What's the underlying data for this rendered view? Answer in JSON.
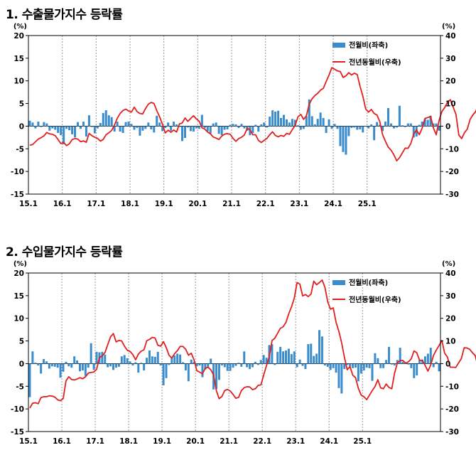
{
  "charts": [
    {
      "title": "1. 수출물가지수 등락률",
      "unit_left": "(%)",
      "unit_right": "(%)",
      "legend": {
        "bar": "전월비(좌축)",
        "line": "전년동월비(우축)"
      }
    },
    {
      "title": "2. 수입물가지수 등락률",
      "unit_left": "(%)",
      "unit_right": "(%)",
      "legend": {
        "bar": "전월비(좌축)",
        "line": "전년동월비(우축)"
      }
    }
  ],
  "colors": {
    "bar": "#3b8ccd",
    "line": "#e0201e",
    "grid": "#999999",
    "axis": "#000000"
  },
  "chart_data": [
    {
      "type": "bar+line",
      "title": "1. 수출물가지수 등락률",
      "x_start": "2015-01",
      "xticks": [
        "15.1",
        "16.1",
        "17.1",
        "18.1",
        "19.1",
        "20.1",
        "21.1",
        "22.1",
        "23.1",
        "24.1",
        "25.1"
      ],
      "left_axis": {
        "ylim": [
          -15,
          20
        ],
        "ticks": [
          -15,
          -10,
          -5,
          0,
          5,
          10,
          15,
          20
        ]
      },
      "right_axis": {
        "ylim": [
          -30,
          40
        ],
        "ticks": [
          -30,
          -20,
          -10,
          0,
          10,
          20,
          30,
          40
        ]
      },
      "series": [
        {
          "name": "전월비(좌축)",
          "axis": "left",
          "kind": "bar",
          "values": [
            1.2,
            0.8,
            -0.5,
            1.0,
            -0.2,
            0.9,
            0.6,
            -1.0,
            -0.5,
            -0.8,
            -1.5,
            -2.0,
            -4.0,
            -0.6,
            -0.9,
            -1.8,
            -2.5,
            0.9,
            -0.6,
            1.0,
            -2.3,
            2.4,
            -0.2,
            -1.6,
            -0.5,
            0.7,
            2.9,
            3.5,
            2.4,
            2.0,
            -1.2,
            1.0,
            -1.2,
            -1.5,
            0.9,
            1.0,
            0.5,
            -0.8,
            -0.4,
            -2.1,
            -1.0,
            -0.6,
            0.8,
            -0.7,
            -1.4,
            2.3,
            0.8,
            -1.1,
            -0.4,
            0.8,
            -1.0,
            1.0,
            0.4,
            -0.2,
            -3.3,
            -2.6,
            -0.3,
            -1.1,
            -1.2,
            -0.5,
            -0.6,
            2.5,
            -0.4,
            -1.1,
            -1.6,
            0.6,
            0.8,
            -1.7,
            -2.0,
            -0.8,
            -0.7,
            0.3,
            0.5,
            0.4,
            -0.4,
            0.5,
            -0.5,
            -1.0,
            -2.0,
            -1.5,
            0.3,
            -1.2,
            0.4,
            0.8,
            -0.3,
            2.1,
            3.5,
            3.2,
            3.4,
            1.8,
            2.5,
            1.5,
            0.8,
            1.6,
            1.4,
            0.2,
            -0.8,
            -0.6,
            2.2,
            5.9,
            2.2,
            0.4,
            1.6,
            3.0,
            1.8,
            -1.5,
            1.5,
            -0.6,
            0.5,
            -0.6,
            -4.4,
            -5.7,
            -6.3,
            -2.2,
            -0.4,
            -0.3,
            -0.8,
            -0.7,
            -1.4,
            -0.1,
            -0.5,
            0.4,
            -3.1,
            0.9,
            0.3,
            -1.1,
            1.0,
            4.0,
            0.6,
            -0.5,
            -0.3,
            4.5,
            0.2,
            -0.2,
            0.6,
            0.6,
            -2.5,
            -2.3,
            0.3,
            1.0,
            1.6,
            1.4,
            2.3,
            0.6,
            0.6,
            -1.0
          ]
        },
        {
          "name": "전년동월비(우축)",
          "axis": "right",
          "kind": "line",
          "values": [
            -8.4,
            -8.1,
            -6.9,
            -5.7,
            -5.1,
            -4.3,
            -2.8,
            -3.4,
            -3.6,
            -4.2,
            -5.9,
            -7.7,
            -7.2,
            -8.6,
            -7.8,
            -5.9,
            -5.5,
            -5.7,
            -6.9,
            -6.5,
            -7.1,
            -3.2,
            -4.2,
            -4.9,
            -5.4,
            -6.6,
            -5.9,
            -3.8,
            -2.9,
            -1.9,
            0.5,
            3.5,
            5.6,
            6.9,
            7.5,
            6.7,
            6.2,
            8.4,
            6.4,
            5.6,
            5.4,
            7.8,
            9.7,
            10.5,
            10.0,
            6.8,
            4.1,
            0.8,
            -3.0,
            -1.8,
            -2.7,
            -1.7,
            -2.6,
            1.0,
            1.4,
            3.6,
            2.1,
            3.4,
            4.6,
            3.2,
            2.2,
            -0.7,
            -1.3,
            -2.6,
            -3.4,
            -4.8,
            -5.3,
            -5.9,
            -4.4,
            -3.5,
            -3.3,
            -3.6,
            -5.4,
            -6.7,
            -5.5,
            -4.9,
            -3.9,
            -1.0,
            -1.6,
            -3.8,
            -3.8,
            -6.3,
            -7.2,
            -6.3,
            -5.4,
            -3.8,
            -2.5,
            -4.1,
            -4.7,
            -4.1,
            -4.5,
            -3.2,
            -3.6,
            -1.5,
            0.3,
            4.1,
            5.2,
            3.0,
            4.6,
            9.7,
            12.1,
            13.5,
            14.5,
            15.9,
            16.7,
            19.7,
            22.5,
            25.8,
            25.1,
            24.4,
            24.1,
            21.5,
            22.2,
            23.6,
            22.6,
            23.4,
            22.8,
            17.6,
            13.2,
            7.6,
            6.2,
            7.4,
            5.6,
            4.9,
            2.0,
            -3.8,
            -6.7,
            -9.3,
            -10.6,
            -12.7,
            -15.3,
            -13.9,
            -11.8,
            -9.7,
            -9.8,
            -7.6,
            -3.6,
            -1.6,
            -3.8,
            -0.9,
            3.4,
            3.8,
            4.3,
            -0.8,
            -3.8,
            2.5,
            6.5,
            8.2,
            10.6,
            11.7,
            8.4,
            5.1,
            -3.9,
            -5.5,
            -2.9,
            -1.3,
            3.0,
            5.0,
            6.5,
            10.0,
            9.6,
            7.9,
            6.6,
            6.2,
            0.5
          ]
        }
      ]
    },
    {
      "type": "bar+line",
      "title": "2. 수입물가지수 등락률",
      "x_start": "2015-01",
      "xticks": [
        "15.1",
        "16.1",
        "17.1",
        "18.1",
        "19.1",
        "20.1",
        "21.1",
        "22.1",
        "23.1",
        "24.1",
        "25.1"
      ],
      "left_axis": {
        "ylim": [
          -15,
          20
        ],
        "ticks": [
          -15,
          -10,
          -5,
          0,
          5,
          10,
          15,
          20
        ]
      },
      "right_axis": {
        "ylim": [
          -30,
          40
        ],
        "ticks": [
          -30,
          -20,
          -10,
          0,
          10,
          20,
          30,
          40
        ]
      },
      "series": [
        {
          "name": "전월비(좌축)",
          "axis": "left",
          "kind": "bar",
          "values": [
            -7.4,
            2.7,
            0.2,
            -0.4,
            -2.2,
            1.0,
            0.5,
            -1.1,
            -0.6,
            -0.7,
            -0.9,
            -3.1,
            -1.8,
            0.4,
            -0.6,
            -0.9,
            1.6,
            0.7,
            -1.7,
            -1.5,
            -2.7,
            -0.9,
            4.5,
            -1.4,
            2.6,
            2.5,
            2.6,
            2.0,
            -0.8,
            -0.6,
            -1.4,
            -0.9,
            -0.7,
            1.6,
            1.9,
            1.2,
            0.5,
            -0.4,
            0.3,
            -2.0,
            0.2,
            -1.5,
            1.3,
            2.9,
            1.6,
            1.5,
            2.6,
            -0.4,
            -4.8,
            -3.2,
            -0.3,
            1.4,
            1.8,
            2.2,
            2.0,
            0.3,
            -1.5,
            -3.9,
            0.9,
            0.4,
            -0.6,
            -0.4,
            -3.0,
            -1.3,
            -0.8,
            1.1,
            -5.7,
            -5.6,
            -3.6,
            -0.4,
            -0.8,
            -1.6,
            -1.6,
            -0.9,
            -0.5,
            0.2,
            -0.7,
            2.7,
            -0.8,
            -1.2,
            -0.8,
            0.4,
            -0.3,
            0.8,
            1.9,
            1.3,
            4.1,
            4.3,
            -0.3,
            2.6,
            3.7,
            2.7,
            2.9,
            3.3,
            2.1,
            2.7,
            -0.8,
            0.9,
            -0.5,
            -1.2,
            4.3,
            4.4,
            1.7,
            2.2,
            7.4,
            6.0,
            -0.4,
            -0.7,
            -1.4,
            -1.0,
            -2.0,
            -5.4,
            -6.6,
            -1.2,
            -0.3,
            -0.6,
            -1.0,
            -0.9,
            -3.9,
            -2.2,
            -1.5,
            -0.9,
            -1.0,
            -3.8,
            2.3,
            1.2,
            -1.0,
            -1.0,
            0.8,
            3.7,
            -0.2,
            -0.4,
            0.8,
            3.5,
            0.4,
            0.3,
            -0.2,
            -1.0,
            -3.2,
            -2.6,
            0.8,
            0.9,
            1.6,
            2.2,
            3.5,
            -0.8,
            0.4,
            -1.7
          ]
        },
        {
          "name": "전년동월비(우축)",
          "axis": "right",
          "kind": "line",
          "values": [
            -19.6,
            -17.5,
            -17.3,
            -17.7,
            -15.0,
            -14.6,
            -14.6,
            -14.2,
            -14.3,
            -14.8,
            -16.0,
            -16.4,
            -15.4,
            -7.6,
            -5.8,
            -7.0,
            -7.2,
            -6.8,
            -6.2,
            -6.7,
            -5.8,
            -4.2,
            -3.9,
            -3.7,
            -2.5,
            2.7,
            3.4,
            4.9,
            8.4,
            11.8,
            13.3,
            9.6,
            10.2,
            10.0,
            7.7,
            5.9,
            5.4,
            4.0,
            1.7,
            4.2,
            5.5,
            6.1,
            10.1,
            10.7,
            11.6,
            11.3,
            8.1,
            7.7,
            9.7,
            7.1,
            3.7,
            2.4,
            4.4,
            5.7,
            7.6,
            7.6,
            6.3,
            3.7,
            4.6,
            1.6,
            -3.1,
            -3.8,
            -4.5,
            -2.1,
            -1.6,
            -2.7,
            -4.9,
            -11.9,
            -15.5,
            -14.5,
            -11.9,
            -11.4,
            -12.1,
            -13.6,
            -15.3,
            -14.9,
            -11.9,
            -10.6,
            -10.2,
            -10.3,
            -11.5,
            -11.1,
            -9.6,
            -9.4,
            -5.1,
            -0.9,
            3.0,
            10.2,
            11.2,
            13.4,
            15.6,
            16.3,
            18.2,
            22.0,
            25.1,
            29.0,
            35.8,
            35.1,
            29.9,
            30.5,
            29.6,
            30.7,
            36.4,
            34.8,
            35.8,
            36.9,
            33.7,
            27.3,
            24.0,
            24.6,
            18.2,
            14.3,
            9.2,
            2.8,
            -2.7,
            -1.3,
            -5.1,
            -6.2,
            -10.9,
            -13.9,
            -14.6,
            -15.9,
            -13.9,
            -11.9,
            -10.1,
            -7.1,
            -10.7,
            -11.1,
            -9.0,
            -10.5,
            -11.1,
            -4.3,
            0.3,
            1.3,
            1.4,
            0.2,
            0.8,
            2.1,
            5.6,
            4.8,
            1.5,
            1.4,
            -0.8,
            -3.3,
            -0.6,
            3.6,
            6.0,
            8.0,
            10.2,
            4.6,
            2.9,
            -1.6,
            -1.6,
            -1.7,
            0.3,
            2.2,
            7.0,
            6.9,
            6.3,
            4.8,
            3.5,
            -1.4
          ]
        }
      ]
    }
  ]
}
